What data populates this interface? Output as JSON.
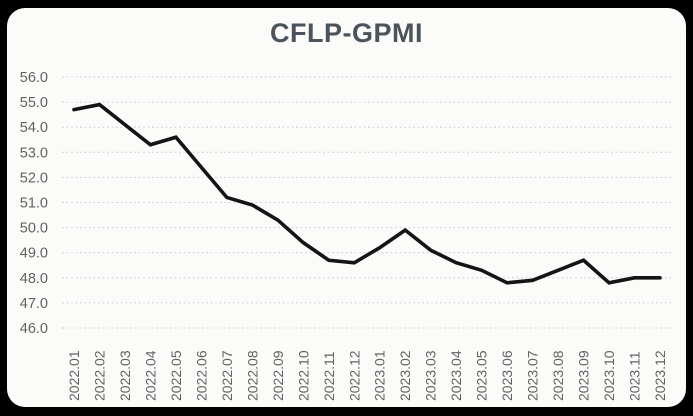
{
  "title": "CFLP-GPMI",
  "colors": {
    "page_background": "#000000",
    "card_background": "#fbfbf9",
    "title_text": "#4b545a",
    "gridline": "#ccd8da",
    "axis_tick_text": "#626262",
    "series_line": "#141414"
  },
  "chart_data": {
    "type": "line",
    "title": "CFLP-GPMI",
    "categories": [
      "2022.01",
      "2022.02",
      "2022.03",
      "2022.04",
      "2022.05",
      "2022.06",
      "2022.07",
      "2022.08",
      "2022.09",
      "2022.10",
      "2022.11",
      "2022.12",
      "2023.01",
      "2023.02",
      "2023.03",
      "2023.04",
      "2023.05",
      "2023.06",
      "2023.07",
      "2023.08",
      "2023.09",
      "2023.10",
      "2023.11",
      "2023.12"
    ],
    "series": [
      {
        "name": "CFLP-GPMI",
        "values": [
          54.7,
          54.9,
          54.1,
          53.3,
          53.6,
          52.4,
          51.2,
          50.9,
          50.3,
          49.4,
          48.7,
          48.6,
          49.2,
          49.9,
          49.1,
          48.6,
          48.3,
          47.8,
          47.9,
          48.3,
          48.7,
          47.8,
          48.0,
          48.0
        ]
      }
    ],
    "xlabel": "",
    "ylabel": "",
    "ylim": [
      46.0,
      56.0
    ],
    "ytick_step": 1.0,
    "ytick_labels": [
      "56.0",
      "55.0",
      "54.0",
      "53.0",
      "52.0",
      "51.0",
      "50.0",
      "49.0",
      "48.0",
      "47.0",
      "46.0"
    ],
    "xtick_rotation": -90,
    "grid": "horizontal-dashed",
    "legend": "none",
    "line_color": "#141414",
    "line_width": 3.6
  }
}
